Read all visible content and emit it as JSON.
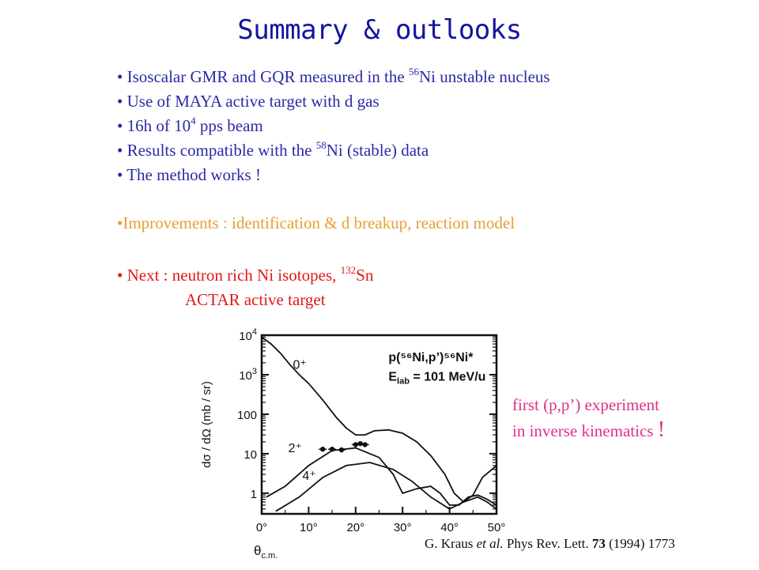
{
  "slide": {
    "title": "Summary & outlooks",
    "bullets": [
      {
        "pre": "• Isoscalar GMR and GQR measured in the ",
        "sup": "56",
        "post": "Ni unstable nucleus"
      },
      {
        "pre": "• Use of MAYA active target with d gas",
        "sup": "",
        "post": ""
      },
      {
        "pre": "• 16h of 10",
        "sup": "4",
        "post": " pps beam"
      },
      {
        "pre": "• Results compatible with the ",
        "sup": "58",
        "post": "Ni (stable) data"
      },
      {
        "pre": "• The method works !",
        "sup": "",
        "post": ""
      }
    ],
    "improvements": "•Improvements : identification & d breakup, reaction model",
    "next": {
      "pre": "• Next : neutron rich Ni isotopes, ",
      "sup": "132",
      "post": "Sn",
      "line2": "ACTAR active target"
    },
    "note": {
      "line1": "first (p,p’) experiment",
      "line2": "in inverse kinematics",
      "bang": "!"
    },
    "reference": {
      "author": "G. Kraus ",
      "etal": "et al.",
      "journal": " Phys Rev. Lett. ",
      "volume": "73",
      "rest": " (1994) 1773"
    }
  },
  "chart_data": {
    "type": "line",
    "x_ticks": [
      "0°",
      "10°",
      "20°",
      "30°",
      "40°",
      "50°"
    ],
    "y_ticks": [
      {
        "base": "10",
        "exp": "4"
      },
      {
        "base": "10",
        "exp": "3"
      },
      {
        "base": "100",
        "exp": ""
      },
      {
        "base": "10",
        "exp": ""
      },
      {
        "base": "1",
        "exp": ""
      }
    ],
    "xlabel": {
      "main": "θ",
      "sub": "c.m."
    },
    "ylabel": "dσ / dΩ  (mb / sr)",
    "xlim": [
      0,
      50
    ],
    "ylim": [
      0.3,
      10000
    ],
    "y_scale": "log",
    "annotation": {
      "reaction": "p(⁵⁶Ni,p’)⁵⁶Ni*",
      "energy_pre": "E",
      "energy_sub": "lab",
      "energy_post": " = 101 MeV/u"
    },
    "series": [
      {
        "label": "0⁺",
        "x": [
          0,
          2,
          4,
          6,
          8,
          10,
          13,
          16,
          18,
          20,
          22,
          24,
          27,
          30,
          33,
          36,
          39,
          41,
          43,
          45,
          47,
          49,
          50
        ],
        "y": [
          9000,
          6000,
          3500,
          1800,
          1000,
          600,
          230,
          80,
          45,
          30,
          30,
          38,
          40,
          33,
          20,
          9,
          3,
          1,
          0.6,
          0.9,
          2.5,
          4,
          5
        ]
      },
      {
        "label": "2⁺",
        "x": [
          1,
          5,
          10,
          15,
          20,
          25,
          28,
          30,
          33,
          36,
          38,
          40,
          42,
          44,
          46,
          48,
          50
        ],
        "y": [
          0.8,
          1.5,
          5,
          12,
          14,
          8,
          3,
          1,
          1.3,
          1.5,
          1,
          0.5,
          0.5,
          0.8,
          0.9,
          0.7,
          0.5
        ]
      },
      {
        "label": "4⁺",
        "x": [
          3,
          8,
          13,
          18,
          23,
          28,
          32,
          36,
          40,
          43,
          46,
          48,
          50
        ],
        "y": [
          0.35,
          0.8,
          2.5,
          5,
          6,
          4,
          2,
          0.8,
          0.4,
          0.6,
          0.8,
          0.6,
          0.4
        ]
      }
    ],
    "points": [
      {
        "x": 13,
        "y": 13
      },
      {
        "x": 15,
        "y": 13
      },
      {
        "x": 17,
        "y": 12.5
      },
      {
        "x": 20,
        "y": 17
      },
      {
        "x": 21,
        "y": 18
      },
      {
        "x": 22,
        "y": 17
      }
    ]
  }
}
